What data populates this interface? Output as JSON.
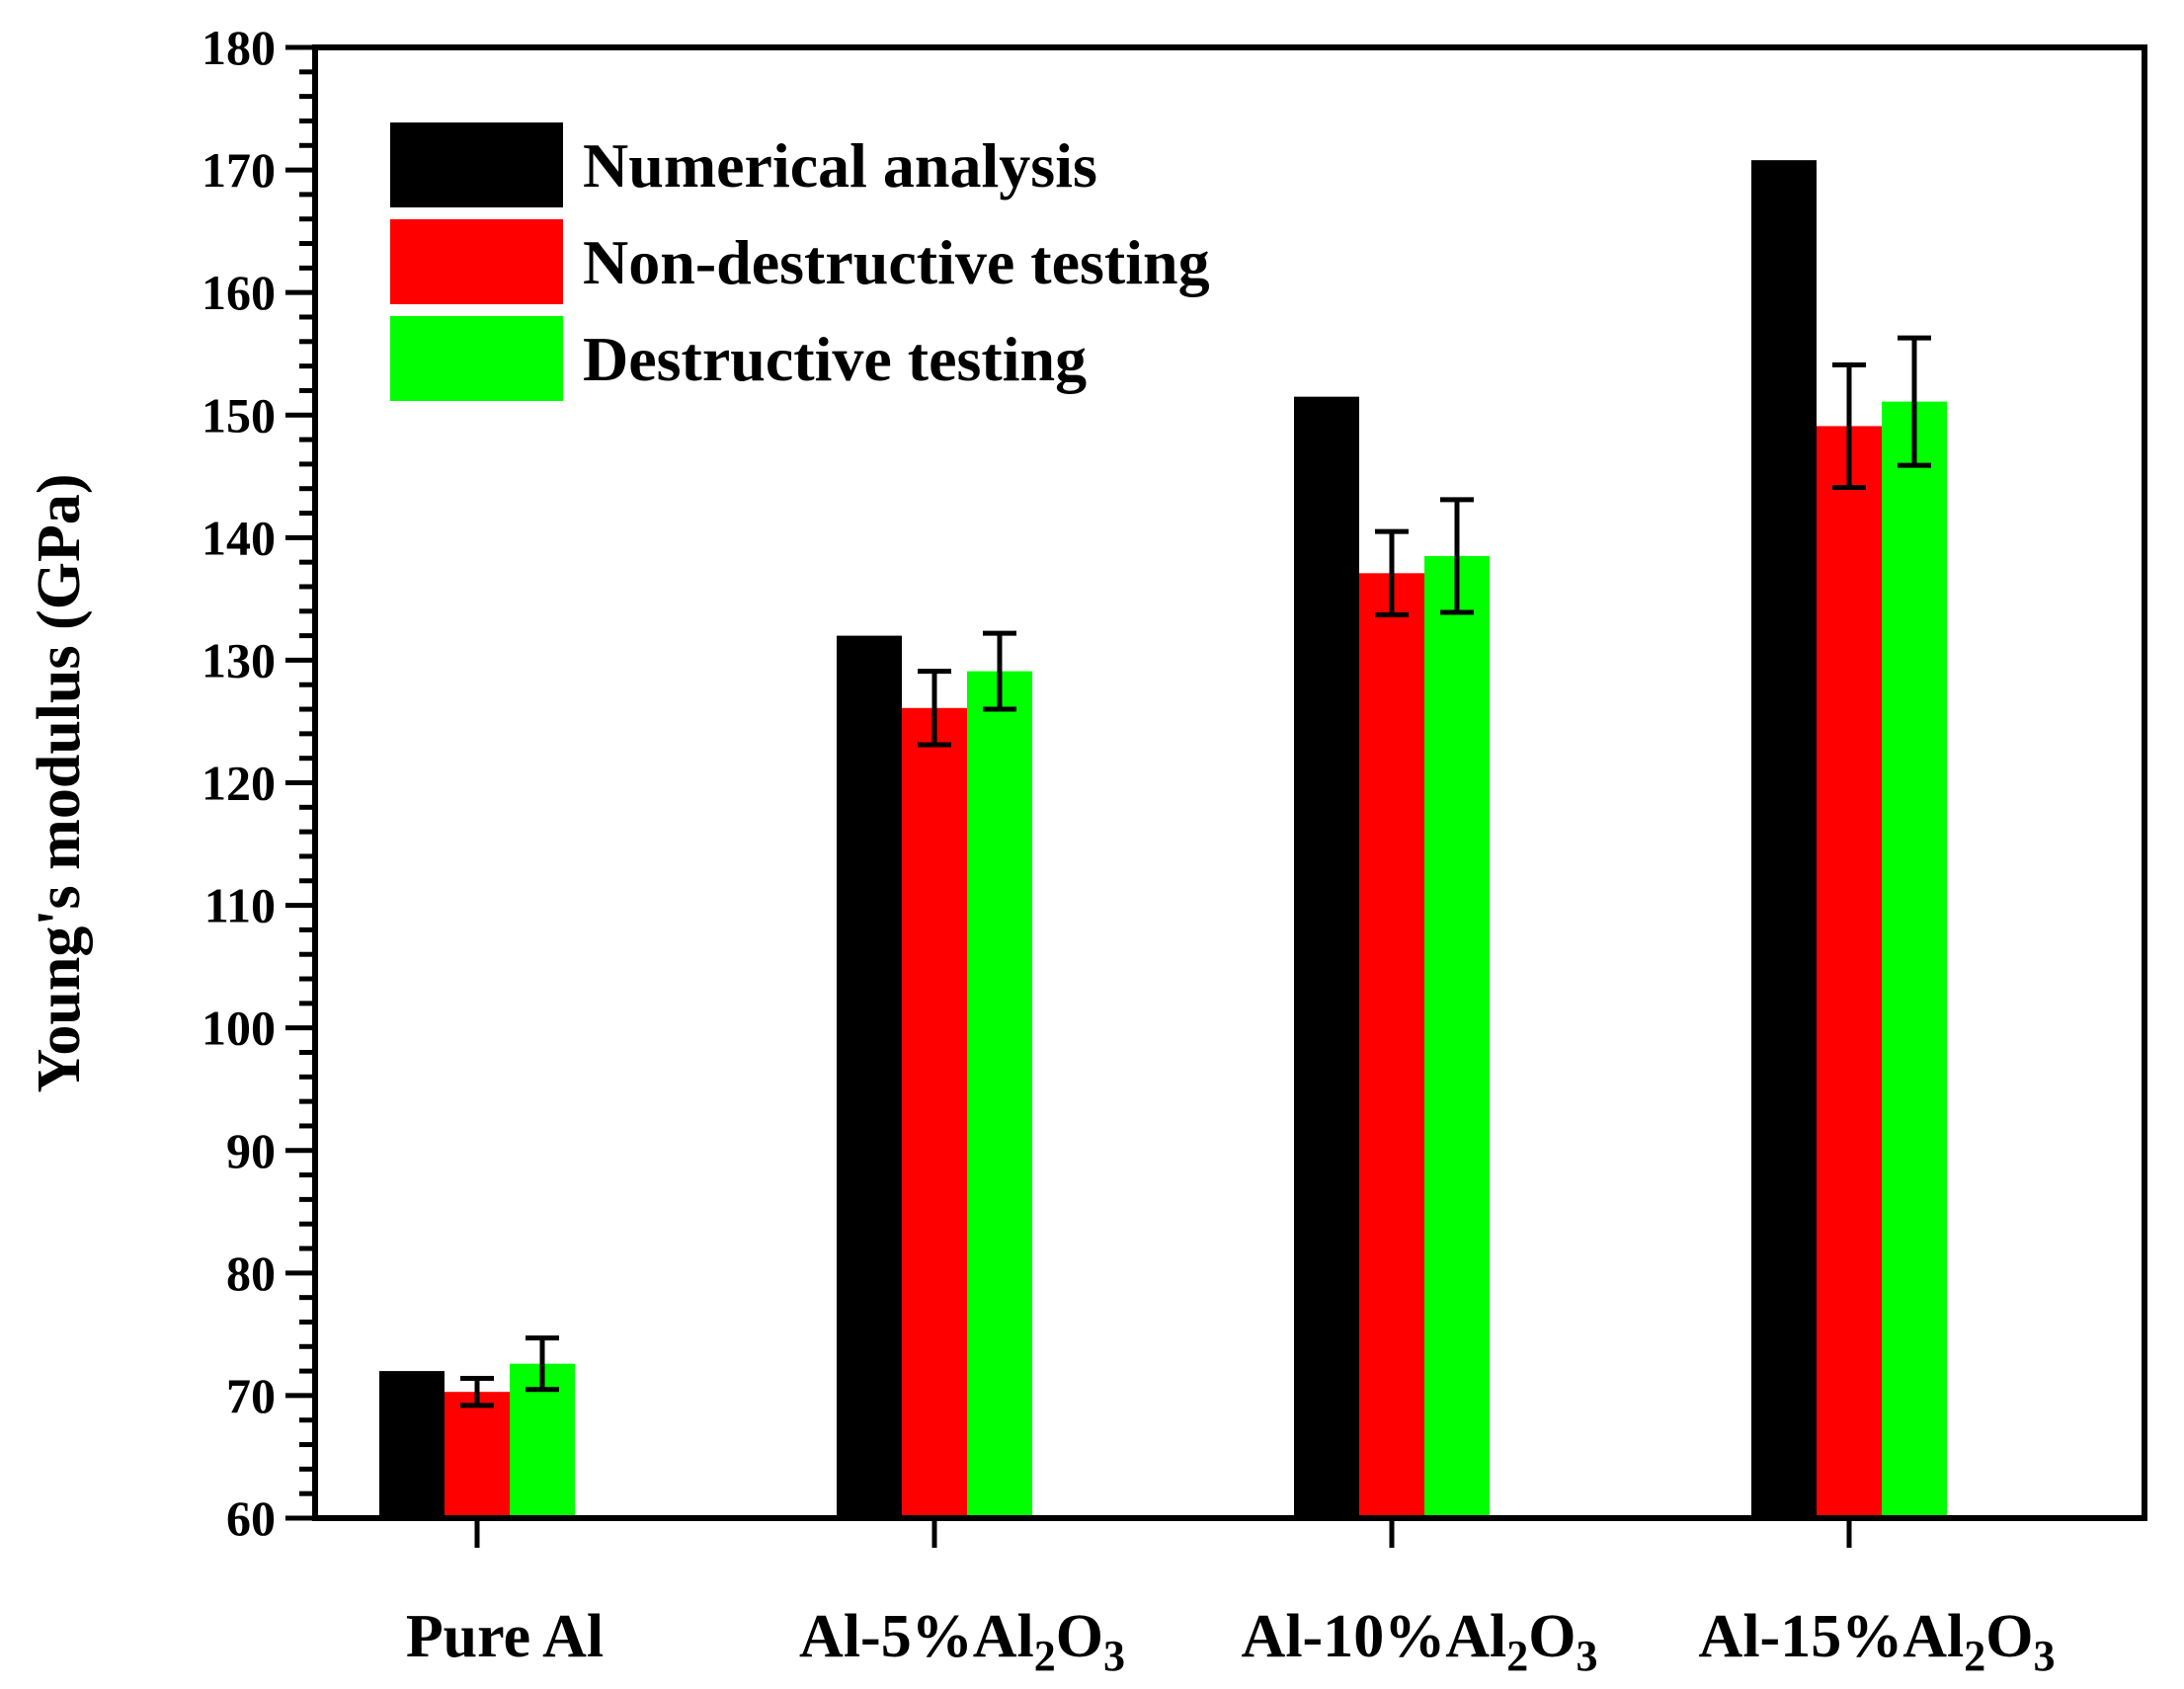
{
  "chart_data": {
    "type": "bar",
    "title": "",
    "xlabel": "",
    "ylabel": "Young's modulus (GPa)",
    "ylim": [
      60,
      180
    ],
    "ytick_step": 10,
    "yminor_step": 2,
    "categories": [
      {
        "base": "Pure Al",
        "parts": []
      },
      {
        "base": "Al-5%Al",
        "parts": [
          "2",
          "O",
          "3"
        ]
      },
      {
        "base": "Al-10%Al",
        "parts": [
          "2",
          "O",
          "3"
        ]
      },
      {
        "base": "Al-15%Al",
        "parts": [
          "2",
          "O",
          "3"
        ]
      }
    ],
    "series": [
      {
        "name": "Numerical analysis",
        "color": "#000000",
        "values": [
          72,
          132,
          151.5,
          170.8
        ],
        "errors": [
          null,
          null,
          null,
          null
        ]
      },
      {
        "name": "Non-destructive testing",
        "color": "#ff0000",
        "values": [
          70.3,
          126.1,
          137.1,
          149.1
        ],
        "errors": [
          1.1,
          3.0,
          3.4,
          5.0
        ]
      },
      {
        "name": "Destructive testing",
        "color": "#00ff00",
        "values": [
          72.6,
          129.1,
          138.5,
          151.1
        ],
        "errors": [
          2.1,
          3.1,
          4.6,
          5.2
        ]
      }
    ],
    "legend_position": "top-left",
    "grid": false
  }
}
